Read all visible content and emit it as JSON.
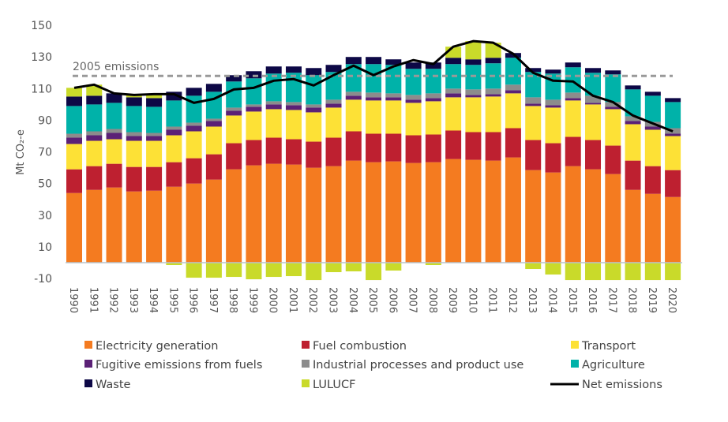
{
  "chart_data": {
    "type": "bar",
    "stacked": true,
    "title": "",
    "xlabel": "",
    "ylabel": "Mt CO₂-e",
    "ylim": [
      -10,
      150
    ],
    "yticks": [
      150,
      130,
      110,
      90,
      70,
      50,
      30,
      10,
      -10
    ],
    "grid": false,
    "legend_position": "bottom",
    "categories": [
      "1990",
      "1991",
      "1992",
      "1993",
      "1994",
      "1995",
      "1996",
      "1997",
      "1998",
      "1999",
      "2000",
      "2001",
      "2002",
      "2003",
      "2004",
      "2005",
      "2006",
      "2007",
      "2008",
      "2009",
      "2010",
      "2011",
      "2012",
      "2013",
      "2014",
      "2015",
      "2016",
      "2017",
      "2018",
      "2019",
      "2020"
    ],
    "series": [
      {
        "name": "Electricity generation",
        "color": "#F47B20",
        "values": [
          44,
          46,
          47.5,
          45,
          45.5,
          48,
          50,
          52.5,
          59,
          61.5,
          62.5,
          62,
          60,
          61,
          64.5,
          63.5,
          64,
          63,
          63.5,
          65.5,
          65,
          64.5,
          66.5,
          58.5,
          57,
          61,
          59,
          56,
          46,
          43.5,
          41.5
        ]
      },
      {
        "name": "Fuel combustion",
        "color": "#BE2030",
        "values": [
          15,
          15,
          15,
          15.5,
          15,
          15.5,
          16,
          16,
          16.5,
          16,
          16.5,
          16,
          16.5,
          18,
          18.5,
          18,
          17.5,
          17.5,
          17.5,
          18,
          17.5,
          18,
          18.5,
          19,
          18.5,
          18.5,
          18.5,
          18,
          18.5,
          17.5,
          17
        ]
      },
      {
        "name": "Transport",
        "color": "#FDE136",
        "values": [
          16,
          16,
          15.5,
          16.5,
          16.5,
          17,
          17,
          17.5,
          17.5,
          18,
          18,
          18.5,
          18.5,
          19,
          20,
          21,
          21,
          20.5,
          21,
          21,
          22,
          22.5,
          22,
          21.5,
          22.5,
          23,
          22.5,
          23,
          23,
          23,
          21.5
        ]
      },
      {
        "name": "Fugitive emissions from fuels",
        "color": "#5B2176",
        "values": [
          4,
          3.5,
          4,
          3,
          3,
          3.5,
          3.5,
          3.5,
          3,
          3,
          3,
          3,
          3,
          2.5,
          2.5,
          2,
          2,
          2,
          2,
          2.5,
          1.5,
          1.5,
          2,
          1.5,
          1.5,
          1.5,
          1,
          1.5,
          2,
          2,
          1.5
        ]
      },
      {
        "name": "Industrial processes and product use",
        "color": "#8C8C8C",
        "values": [
          2.5,
          2.5,
          2.5,
          2.5,
          2,
          2,
          2,
          1.5,
          2,
          1.5,
          2,
          2,
          2,
          2.5,
          2.5,
          3,
          2.5,
          3,
          3,
          3,
          3.5,
          3.5,
          3.5,
          4,
          3.5,
          3.5,
          4.5,
          3,
          3,
          3,
          3.5
        ]
      },
      {
        "name": "Agriculture",
        "color": "#00B2A9",
        "values": [
          17.5,
          17,
          16.5,
          16.5,
          16.5,
          16.5,
          17,
          17,
          16.5,
          16.5,
          17.5,
          18.5,
          18.5,
          17.5,
          17.5,
          18,
          18,
          16.5,
          15.5,
          15.5,
          15.5,
          16,
          17,
          16,
          16.5,
          16,
          14.5,
          17.5,
          17,
          16.5,
          16.5
        ]
      },
      {
        "name": "Waste",
        "color": "#0D0846",
        "values": [
          6,
          5.5,
          6,
          5.5,
          5.5,
          5.5,
          5,
          5,
          4,
          4.5,
          4.5,
          4,
          4.5,
          4.5,
          4.5,
          4.5,
          3.5,
          4,
          4,
          4,
          3.5,
          3.5,
          3,
          2.5,
          2.5,
          3,
          3,
          2.5,
          2.5,
          2.5,
          2.5
        ]
      },
      {
        "name": "LULUCF",
        "color": "#C9DA2A",
        "values": [
          5.5,
          7,
          0,
          1.5,
          2.5,
          -1.5,
          -9.5,
          -9.5,
          -9,
          -10.5,
          -9,
          -8.5,
          -11,
          -6,
          -5.5,
          -11,
          -5,
          0,
          -1.5,
          7,
          11.5,
          9.5,
          0,
          -4,
          -7.5,
          -11,
          -11,
          -11,
          -11,
          -11,
          -11
        ]
      }
    ],
    "line_series": {
      "name": "Net emissions",
      "color": "#000000",
      "values": [
        110.5,
        112.5,
        107,
        106,
        106.5,
        106.5,
        101,
        103.5,
        109.5,
        110.5,
        115,
        116,
        112,
        118.5,
        124.5,
        118.5,
        124,
        128,
        125.5,
        136.5,
        140,
        139,
        132,
        120,
        115,
        114.5,
        105.5,
        101.5,
        93,
        88,
        83
      ]
    },
    "reference_line": {
      "label": "2005 emissions",
      "value": 118,
      "color": "#999999",
      "style": "dashed"
    }
  }
}
